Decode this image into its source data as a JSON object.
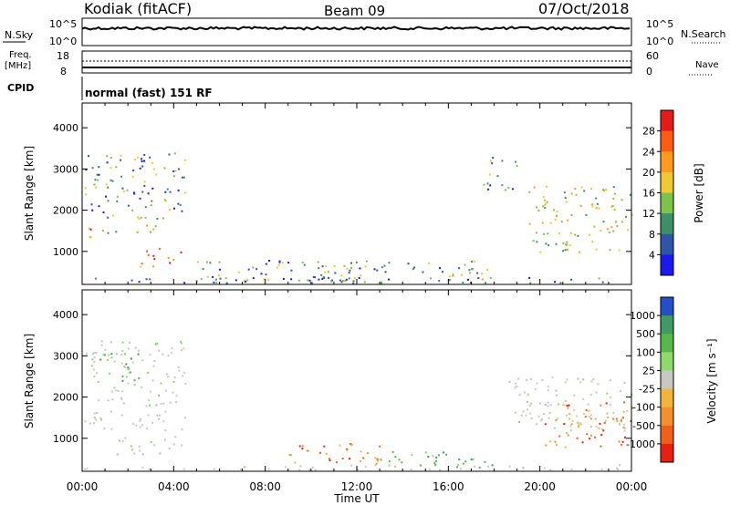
{
  "header": {
    "station": "Kodiak (fitACF)",
    "beam": "Beam 09",
    "date": "07/Oct/2018"
  },
  "top_panels": {
    "nsky_label": "N.Sky",
    "nsky_ticks": [
      "10^5",
      "10^0"
    ],
    "nsearch_label": "N.Search",
    "nsearch_ticks": [
      "10^5",
      "10^0"
    ],
    "freq_label_line1": "Freq.",
    "freq_label_line2": "[MHz]",
    "freq_ticks": [
      "18",
      "8"
    ],
    "nave_label": "Nave",
    "nave_ticks": [
      "60",
      "0"
    ],
    "cpid_label": "CPID",
    "cpid_text": "normal (fast) 151 RF"
  },
  "chart_data": [
    {
      "type": "heatmap",
      "name": "power",
      "ylabel": "Slant Range [km]",
      "yticks": [
        1000,
        2000,
        3000,
        4000
      ],
      "ylim": [
        200,
        4600
      ],
      "xticks": [
        "00:00",
        "04:00",
        "08:00",
        "12:00",
        "16:00",
        "20:00",
        "00:00"
      ],
      "xlim_hours": [
        0,
        24
      ],
      "colorbar": {
        "label": "Power [dB]",
        "ticks": [
          "28",
          "24",
          "20",
          "16",
          "12",
          "8",
          "4"
        ],
        "colors": [
          "#e51a1a",
          "#ff5a14",
          "#ff9a1e",
          "#f2c832",
          "#7fc24a",
          "#3d8f68",
          "#2f55a8",
          "#1a1af0"
        ]
      },
      "regions": [
        {
          "t0": 0.1,
          "t1": 0.7,
          "r0": 1200,
          "r1": 1600,
          "level": "high"
        },
        {
          "t0": 0.8,
          "t1": 3.2,
          "r0": 1400,
          "r1": 1700,
          "level": "mid"
        },
        {
          "t0": 2.5,
          "t1": 4.3,
          "r0": 600,
          "r1": 1100,
          "level": "high"
        },
        {
          "t0": 0.1,
          "t1": 4.5,
          "r0": 1800,
          "r1": 3400,
          "level": "low"
        },
        {
          "t0": 5.0,
          "t1": 17.5,
          "r0": 300,
          "r1": 800,
          "level": "low"
        },
        {
          "t0": 10.5,
          "t1": 12.0,
          "r0": 300,
          "r1": 700,
          "level": "mid"
        },
        {
          "t0": 15.5,
          "t1": 18.0,
          "r0": 300,
          "r1": 600,
          "level": "mid"
        },
        {
          "t0": 17.5,
          "t1": 19.0,
          "r0": 2500,
          "r1": 3300,
          "level": "low"
        },
        {
          "t0": 19.5,
          "t1": 24.0,
          "r0": 1000,
          "r1": 2600,
          "level": "mid"
        },
        {
          "t0": 0.0,
          "t1": 24.0,
          "r0": 250,
          "r1": 380,
          "level": "ground"
        }
      ]
    },
    {
      "type": "heatmap",
      "name": "velocity",
      "ylabel": "Slant Range [km]",
      "yticks": [
        1000,
        2000,
        3000,
        4000
      ],
      "ylim": [
        200,
        4600
      ],
      "xticks": [
        "00:00",
        "04:00",
        "08:00",
        "12:00",
        "16:00",
        "20:00",
        "00:00"
      ],
      "xlim_hours": [
        0,
        24
      ],
      "xlabel": "Time UT",
      "colorbar": {
        "label": "Velocity [m s⁻¹]",
        "ticks": [
          "1000",
          "500",
          "100",
          "25",
          "-25",
          "-100",
          "-500",
          "-1000"
        ],
        "colors": [
          "#2350c8",
          "#3f9a63",
          "#56b84a",
          "#8fd86a",
          "#c8c8c0",
          "#f2b43a",
          "#f29030",
          "#f06018",
          "#e82010"
        ]
      },
      "regions": [
        {
          "t0": 0.1,
          "t1": 4.5,
          "r0": 1200,
          "r1": 1700,
          "level": "ground"
        },
        {
          "t0": 1.5,
          "t1": 4.5,
          "r0": 600,
          "r1": 1100,
          "level": "ground"
        },
        {
          "t0": 0.1,
          "t1": 4.5,
          "r0": 1800,
          "r1": 3400,
          "level": "ground"
        },
        {
          "t0": 0.7,
          "t1": 2.5,
          "r0": 2400,
          "r1": 3100,
          "level": "pos"
        },
        {
          "t0": 9.0,
          "t1": 13.0,
          "r0": 400,
          "r1": 900,
          "level": "neg"
        },
        {
          "t0": 13.0,
          "t1": 18.0,
          "r0": 300,
          "r1": 700,
          "level": "pos"
        },
        {
          "t0": 18.5,
          "t1": 24.0,
          "r0": 1200,
          "r1": 2500,
          "level": "ground"
        },
        {
          "t0": 20.0,
          "t1": 24.0,
          "r0": 800,
          "r1": 1900,
          "level": "neg"
        },
        {
          "t0": 0.0,
          "t1": 24.0,
          "r0": 250,
          "r1": 380,
          "level": "ground"
        }
      ]
    }
  ]
}
